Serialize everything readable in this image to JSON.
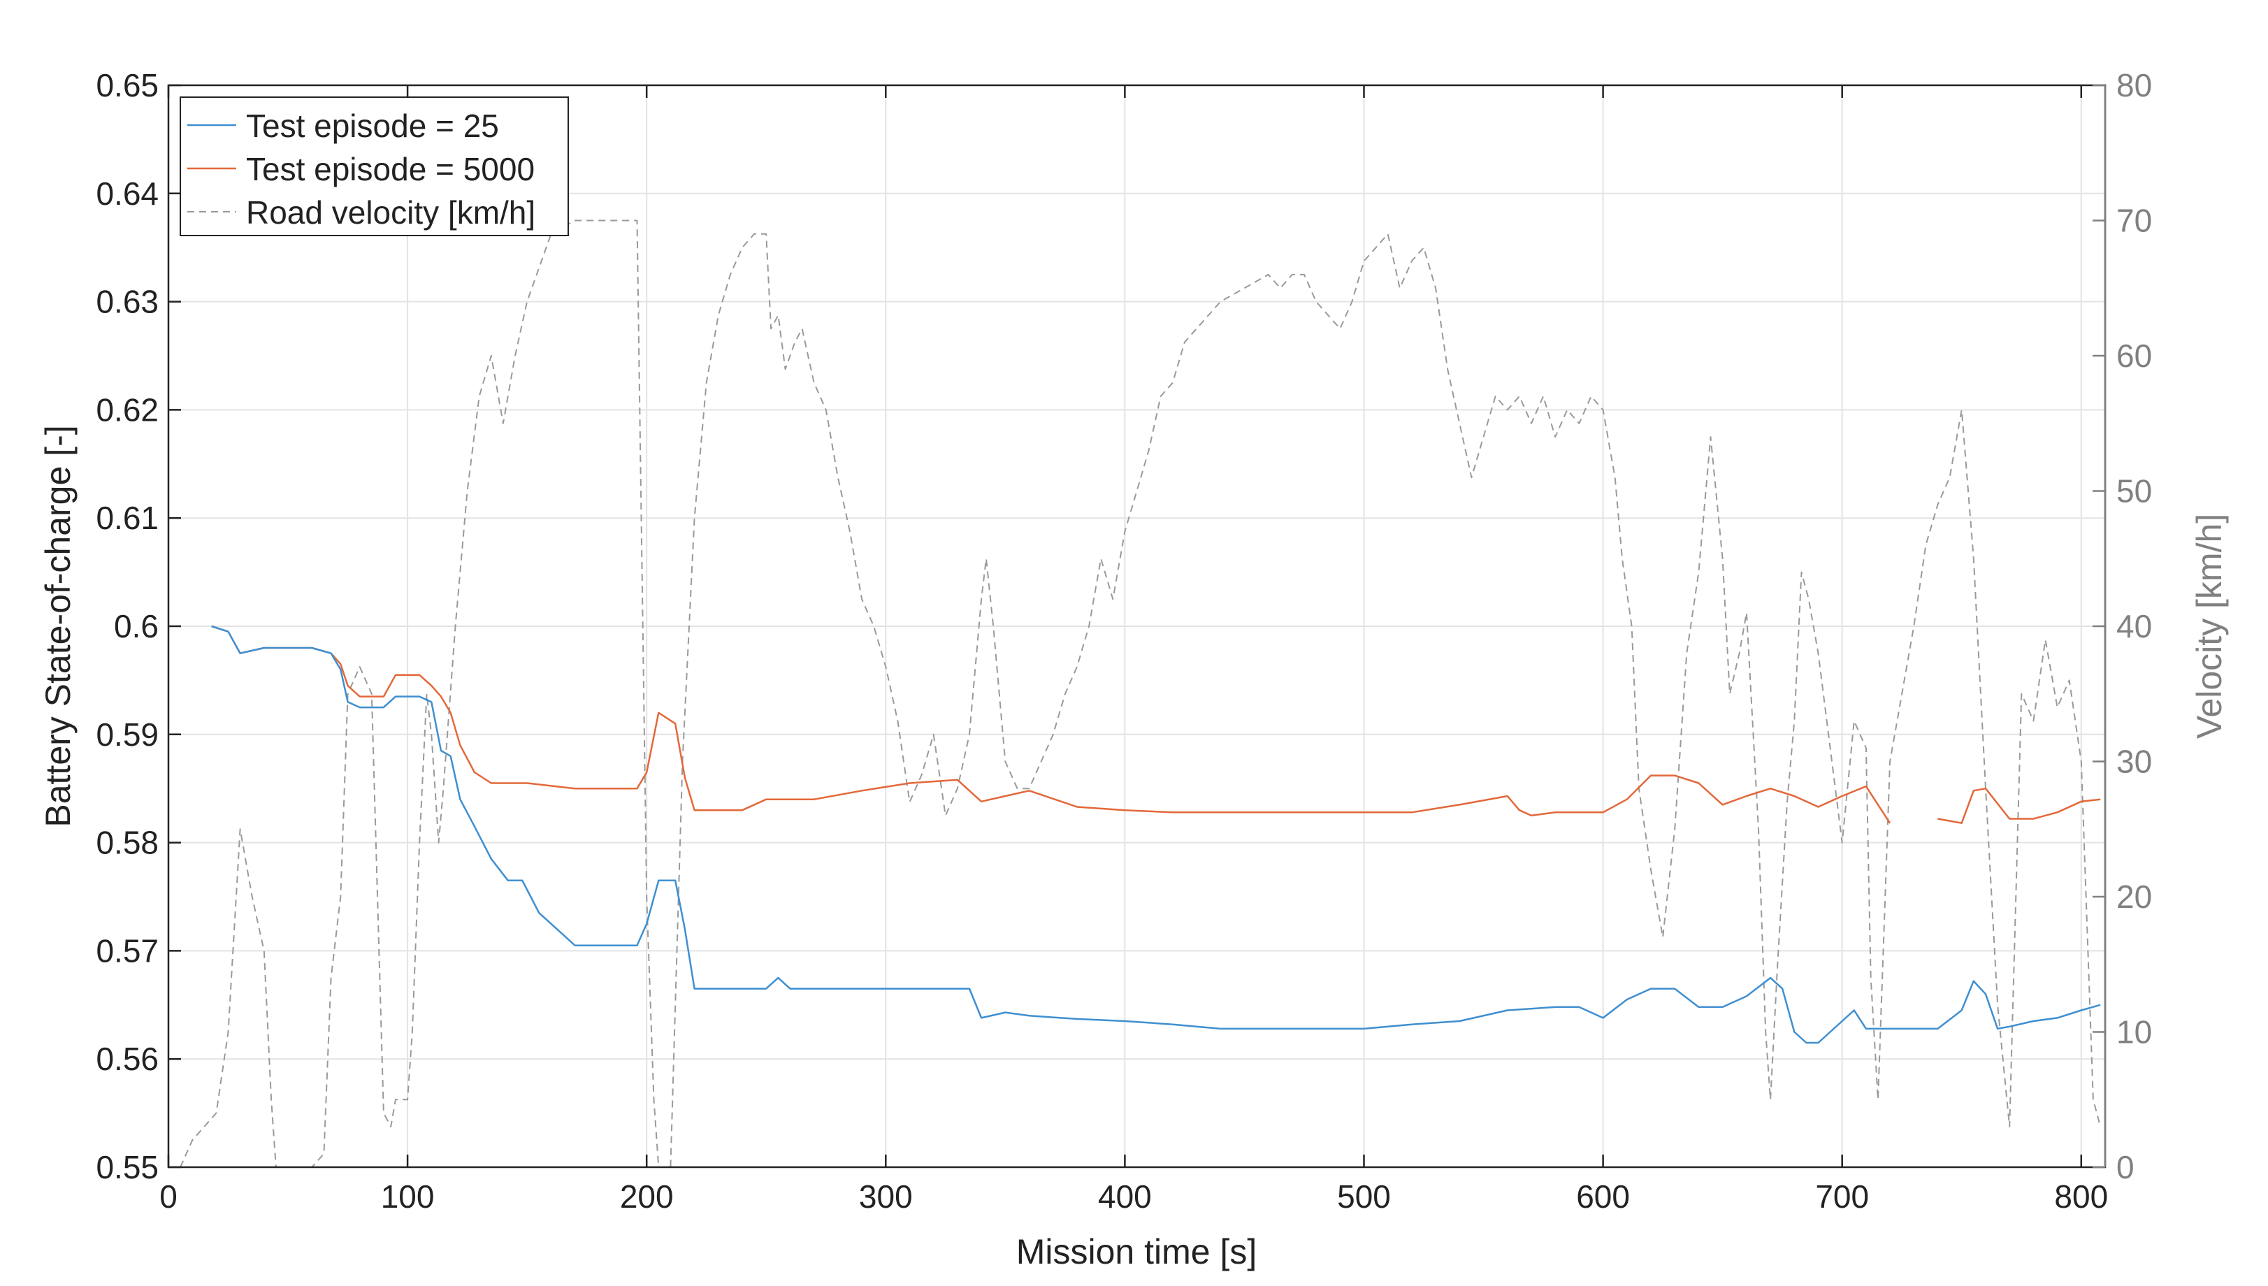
{
  "chart_data": {
    "type": "line",
    "xlabel": "Mission time [s]",
    "ylabel_left": "Battery State-of-charge [-]",
    "ylabel_right": "Velocity [km/h]",
    "xlim": [
      0,
      810
    ],
    "ylim_left": [
      0.55,
      0.65
    ],
    "ylim_right": [
      0,
      80
    ],
    "xticks": [
      0,
      100,
      200,
      300,
      400,
      500,
      600,
      700,
      800
    ],
    "xtick_labels": [
      "0",
      "100",
      "200",
      "300",
      "400",
      "500",
      "600",
      "700",
      "800"
    ],
    "yticks_left": [
      0.55,
      0.56,
      0.57,
      0.58,
      0.59,
      0.6,
      0.61,
      0.62,
      0.63,
      0.64,
      0.65
    ],
    "ytick_labels_left": [
      "0.55",
      "0.56",
      "0.57",
      "0.58",
      "0.59",
      "0.6",
      "0.61",
      "0.62",
      "0.63",
      "0.64",
      "0.65"
    ],
    "yticks_right": [
      0,
      10,
      20,
      30,
      40,
      50,
      60,
      70,
      80
    ],
    "ytick_labels_right": [
      "0",
      "10",
      "20",
      "30",
      "40",
      "50",
      "60",
      "70",
      "80"
    ],
    "grid": true,
    "legend_position": "top-left",
    "colors": {
      "ep25": "#3f8fd0",
      "ep5000": "#e3683a",
      "velocity": "#9a9a9a",
      "axis_left": "#222222",
      "axis_right": "#808080",
      "grid": "#e3e3e3"
    },
    "series": [
      {
        "name": "Test episode = 25",
        "axis": "left",
        "x": [
          18,
          25,
          30,
          40,
          50,
          60,
          68,
          72,
          75,
          80,
          90,
          95,
          100,
          105,
          110,
          114,
          118,
          122,
          128,
          135,
          142,
          148,
          155,
          170,
          185,
          196,
          200,
          205,
          212,
          216,
          220,
          230,
          240,
          250,
          255,
          260,
          270,
          290,
          310,
          330,
          335,
          340,
          350,
          360,
          380,
          400,
          420,
          440,
          460,
          480,
          500,
          520,
          540,
          560,
          580,
          590,
          600,
          610,
          620,
          630,
          640,
          650,
          660,
          670,
          675,
          680,
          685,
          690,
          695,
          700,
          705,
          710,
          720,
          730,
          740,
          750,
          755,
          760,
          765,
          770,
          780,
          790,
          800,
          808
        ],
        "y": [
          0.6,
          0.5995,
          0.5975,
          0.598,
          0.598,
          0.598,
          0.5975,
          0.596,
          0.593,
          0.5925,
          0.5925,
          0.5935,
          0.5935,
          0.5935,
          0.593,
          0.5885,
          0.588,
          0.584,
          0.5815,
          0.5785,
          0.5765,
          0.5765,
          0.5735,
          0.5705,
          0.5705,
          0.5705,
          0.5725,
          0.5765,
          0.5765,
          0.572,
          0.5665,
          0.5665,
          0.5665,
          0.5665,
          0.5675,
          0.5665,
          0.5665,
          0.5665,
          0.5665,
          0.5665,
          0.5665,
          0.5638,
          0.5643,
          0.564,
          0.5637,
          0.5635,
          0.5632,
          0.5628,
          0.5628,
          0.5628,
          0.5628,
          0.5632,
          0.5635,
          0.5645,
          0.5648,
          0.5648,
          0.5638,
          0.5655,
          0.5665,
          0.5665,
          0.5648,
          0.5648,
          0.5658,
          0.5675,
          0.5665,
          0.5625,
          0.5615,
          0.5615,
          0.5625,
          0.5635,
          0.5645,
          0.5628,
          0.5628,
          0.5628,
          0.5628,
          0.5645,
          0.5672,
          0.566,
          0.5628,
          0.563,
          0.5635,
          0.5638,
          0.5645,
          0.565
        ]
      },
      {
        "name": "Test episode = 5000",
        "axis": "left",
        "x": [
          18,
          25,
          30,
          40,
          50,
          60,
          68,
          72,
          75,
          80,
          90,
          95,
          100,
          105,
          110,
          114,
          118,
          122,
          128,
          135,
          150,
          170,
          185,
          196,
          200,
          205,
          212,
          216,
          220,
          230,
          240,
          250,
          270,
          290,
          310,
          330,
          340,
          350,
          360,
          380,
          400,
          420,
          440,
          460,
          480,
          500,
          520,
          540,
          560,
          565,
          570,
          580,
          590,
          600,
          610,
          620,
          630,
          640,
          650,
          660,
          670,
          680,
          690,
          700,
          710,
          720,
          725,
          730,
          740,
          750,
          755,
          760,
          770,
          780,
          790,
          800,
          808
        ],
        "y": [
          0.6,
          0.5995,
          0.5975,
          0.598,
          0.598,
          0.598,
          0.5975,
          0.5965,
          0.5945,
          0.5935,
          0.5935,
          0.5955,
          0.5955,
          0.5955,
          0.5945,
          0.5935,
          0.592,
          0.589,
          0.5865,
          0.5855,
          0.5855,
          0.585,
          0.585,
          0.585,
          0.5865,
          0.592,
          0.591,
          0.586,
          0.583,
          0.583,
          0.583,
          0.584,
          0.584,
          0.5848,
          0.5855,
          0.5858,
          0.5838,
          0.5843,
          0.5848,
          0.5833,
          0.583,
          0.5828,
          0.5828,
          0.5828,
          0.5828,
          0.5828,
          0.5828,
          0.5835,
          0.5843,
          0.583,
          0.5825,
          0.5828,
          0.5828,
          0.5828,
          0.584,
          0.5862,
          0.5862,
          0.5855,
          0.5835,
          0.5843,
          0.585,
          0.5843,
          0.5833,
          0.5843,
          0.5852,
          0.5818,
          null,
          null,
          0.5822,
          0.5818,
          0.5848,
          0.585,
          0.5822,
          0.5822,
          0.5828,
          0.5838,
          0.584
        ]
      },
      {
        "name": "Road velocity [km/h]",
        "axis": "right",
        "dashed": true,
        "x": [
          5,
          10,
          15,
          20,
          25,
          28,
          30,
          35,
          40,
          43,
          45,
          50,
          60,
          65,
          68,
          72,
          75,
          80,
          85,
          90,
          93,
          95,
          100,
          102,
          105,
          108,
          110,
          113,
          115,
          120,
          125,
          130,
          135,
          140,
          145,
          150,
          160,
          170,
          180,
          190,
          196,
          200,
          203,
          205,
          210,
          215,
          220,
          225,
          230,
          235,
          240,
          245,
          250,
          252,
          255,
          258,
          262,
          265,
          270,
          275,
          280,
          285,
          290,
          295,
          300,
          305,
          310,
          315,
          320,
          325,
          330,
          335,
          340,
          342,
          345,
          350,
          355,
          360,
          365,
          370,
          375,
          380,
          385,
          390,
          395,
          400,
          405,
          410,
          415,
          420,
          425,
          430,
          435,
          440,
          450,
          460,
          465,
          470,
          475,
          480,
          490,
          495,
          500,
          505,
          510,
          515,
          520,
          525,
          530,
          535,
          540,
          545,
          550,
          555,
          560,
          565,
          570,
          575,
          580,
          585,
          590,
          595,
          600,
          605,
          608,
          612,
          615,
          620,
          625,
          630,
          635,
          640,
          645,
          650,
          653,
          657,
          660,
          665,
          668,
          670,
          673,
          677,
          680,
          683,
          686,
          690,
          695,
          700,
          705,
          710,
          712,
          715,
          720,
          725,
          730,
          735,
          740,
          745,
          750,
          755,
          760,
          765,
          770,
          775,
          780,
          785,
          790,
          795,
          800,
          805,
          808
        ],
        "y": [
          0,
          2,
          3,
          4,
          10,
          19,
          25,
          20,
          16,
          5,
          0,
          0,
          0,
          1,
          14,
          20,
          35,
          37,
          35,
          4,
          3,
          5,
          5,
          10,
          24,
          35,
          32,
          24,
          28,
          40,
          50,
          57,
          60,
          55,
          60,
          64,
          69,
          70,
          70,
          70,
          70,
          20,
          5,
          0,
          0,
          30,
          48,
          58,
          63,
          66,
          68,
          69,
          69,
          62,
          63,
          59,
          61,
          62,
          58,
          56,
          51,
          47,
          42,
          40,
          37,
          33,
          27,
          29,
          32,
          26,
          28,
          32,
          42,
          45,
          40,
          30,
          28,
          28,
          30,
          32,
          35,
          37,
          40,
          45,
          42,
          47,
          50,
          53,
          57,
          58,
          61,
          62,
          63,
          64,
          65,
          66,
          65,
          66,
          66,
          64,
          62,
          64,
          67,
          68,
          69,
          65,
          67,
          68,
          65,
          59,
          55,
          51,
          54,
          57,
          56,
          57,
          55,
          57,
          54,
          56,
          55,
          57,
          56,
          51,
          45,
          40,
          28,
          22,
          17,
          25,
          38,
          44,
          54,
          45,
          35,
          38,
          41,
          25,
          10,
          5,
          15,
          27,
          33,
          44,
          42,
          38,
          31,
          24,
          33,
          31,
          14,
          5,
          30,
          35,
          40,
          46,
          49,
          51,
          56,
          45,
          28,
          12,
          3,
          35,
          33,
          39,
          34,
          36,
          30,
          5,
          3
        ]
      }
    ]
  }
}
